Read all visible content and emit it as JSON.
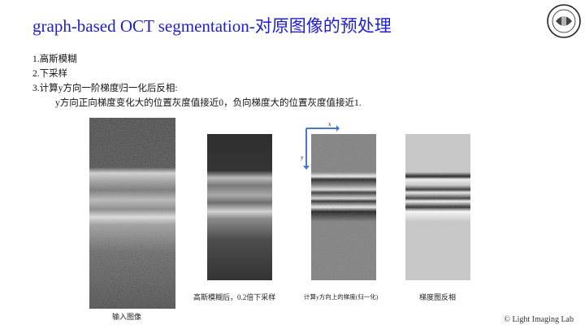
{
  "slide": {
    "title": "graph-based OCT segmentation-对原图像的预处理",
    "bullets": {
      "item1": "1.高斯模糊",
      "item2": "2.下采样",
      "item3": "3.计算y方向一阶梯度归一化后反相:",
      "item3_detail": "y方向正向梯度变化大的位置灰度值接近0，负向梯度大的位置灰度值接近1."
    },
    "axes": {
      "x_label": "x",
      "y_label": "y"
    },
    "captions": {
      "original": "输入图像",
      "blurred": "高斯模糊后，0.2倍下采样",
      "gradient": "计算y方向上的梯度(归一化)",
      "inverted": "梯度图反相"
    },
    "copyright": "© Light Imaging Lab"
  },
  "colors": {
    "title": "#1f1fd0",
    "axis_arrow": "#4a78c8"
  }
}
